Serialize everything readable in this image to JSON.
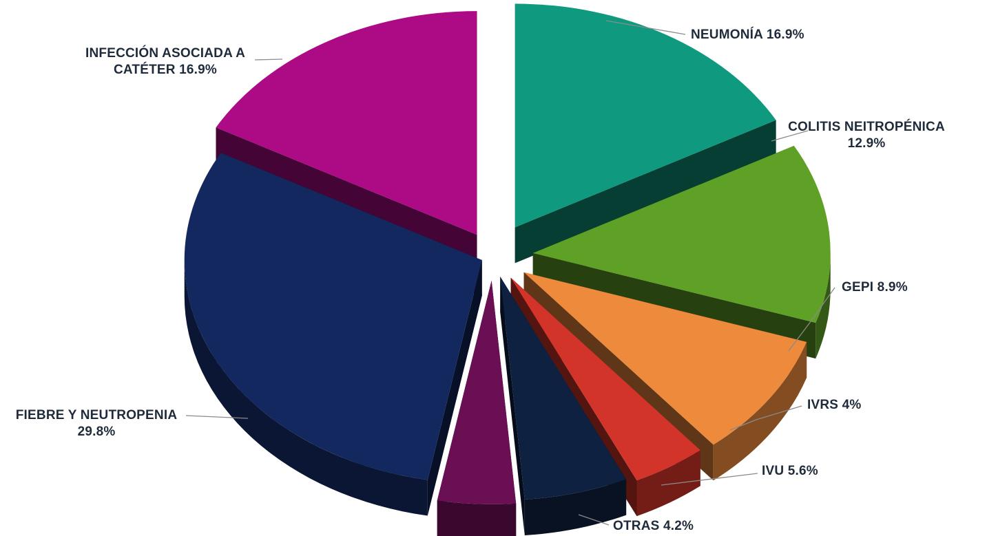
{
  "chart_data": {
    "type": "pie",
    "style": "3d-exploded",
    "slices": [
      {
        "label_lines": [
          "NEUMONÍA 16.9%"
        ],
        "category": "NEUMONÍA",
        "value": 16.9,
        "color": "#0f9a80"
      },
      {
        "label_lines": [
          "COLITIS NEITROPÉNICA",
          "12.9%"
        ],
        "category": "COLITIS NEITROPÉNICA",
        "value": 12.9,
        "color": "#5fa026"
      },
      {
        "label_lines": [
          "GEPI 8.9%"
        ],
        "category": "GEPI",
        "value": 8.9,
        "color": "#ee8a3c"
      },
      {
        "label_lines": [
          "IVRS 4%"
        ],
        "category": "IVRS",
        "value": 4,
        "color": "#d3342a"
      },
      {
        "label_lines": [
          "IVU 5.6%"
        ],
        "category": "IVU",
        "value": 5.6,
        "color": "#0f2140"
      },
      {
        "label_lines": [
          "OTRAS 4.2%"
        ],
        "category": "OTRAS",
        "value": 4.2,
        "color": "#6a0f54"
      },
      {
        "label_lines": [
          "FIEBRE Y NEUTROPENIA",
          "29.8%"
        ],
        "category": "FIEBRE Y NEUTROPENIA",
        "value": 29.8,
        "color": "#12285e"
      },
      {
        "label_lines": [
          "INFECCIÓN ASOCIADA A",
          "CATÉTER 16.9%"
        ],
        "category": "INFECCIÓN ASOCIADA A CATÉTER",
        "value": 16.9,
        "color": "#ad0a86"
      }
    ]
  }
}
